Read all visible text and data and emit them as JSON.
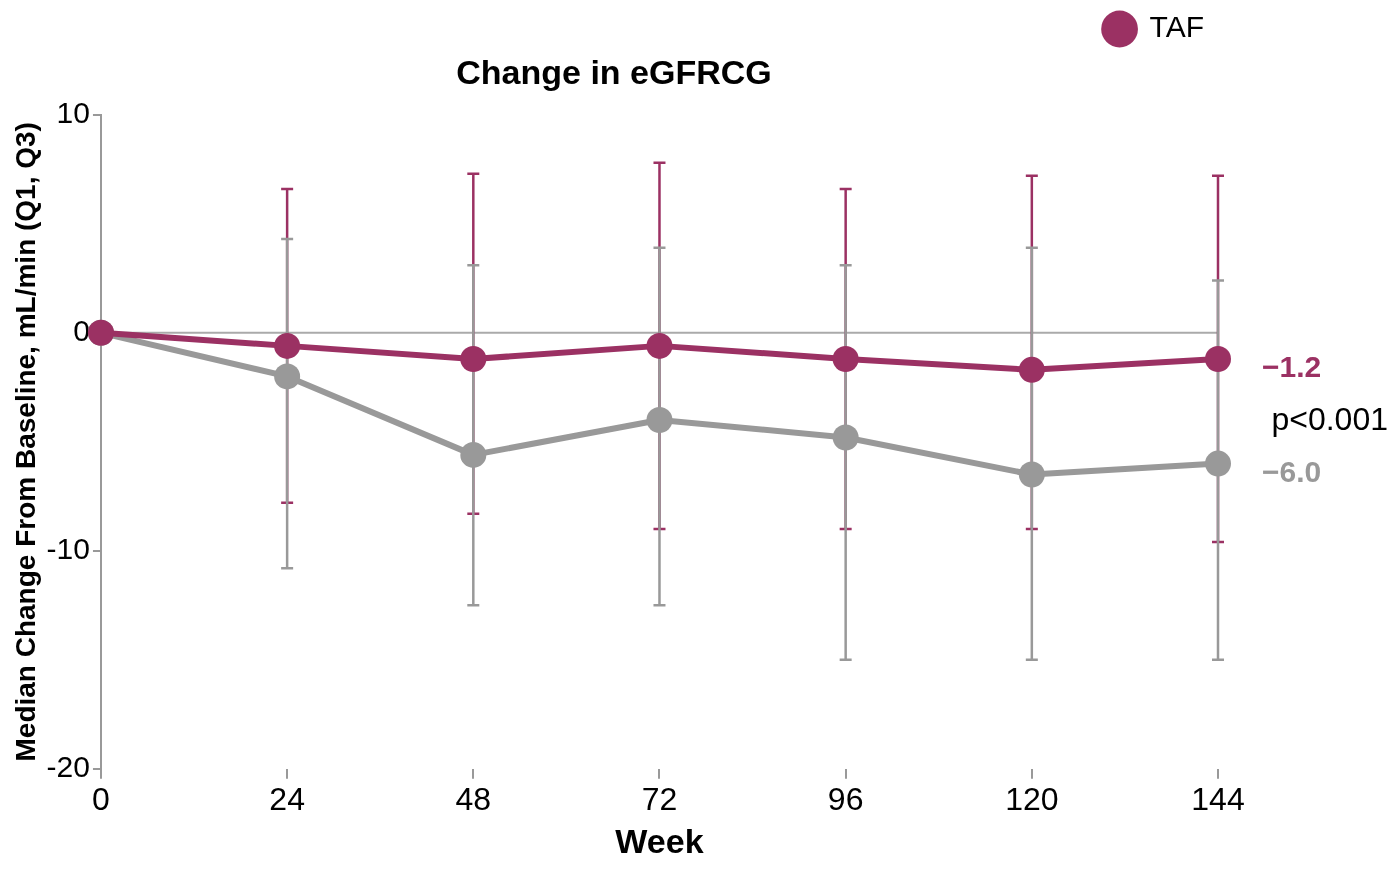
{
  "chart_data": {
    "type": "line",
    "title": "Change in eGFRCG",
    "xlabel": "Week",
    "ylabel": "Median Change From Baseline, mL/min (Q1, Q3)",
    "x": [
      0,
      24,
      48,
      72,
      96,
      120,
      144
    ],
    "series": [
      {
        "name": "TAF",
        "color": "#9b3163",
        "values": [
          0,
          -0.6,
          -1.2,
          -0.6,
          -1.2,
          -1.7,
          -1.2
        ],
        "errors": [
          null,
          [
            -7.8,
            6.6
          ],
          [
            -8.3,
            7.3
          ],
          [
            -9.0,
            7.8
          ],
          [
            -9.0,
            6.6
          ],
          [
            -9.0,
            7.2
          ],
          [
            -9.6,
            7.2
          ]
        ]
      },
      {
        "color": "#999999",
        "values": [
          0,
          -2.0,
          -5.6,
          -4.0,
          -4.8,
          -6.5,
          -6.0
        ],
        "errors": [
          null,
          [
            -10.8,
            4.3
          ],
          [
            -12.5,
            3.1
          ],
          [
            -12.5,
            3.9
          ],
          [
            -15.0,
            3.1
          ],
          [
            -15.0,
            3.9
          ],
          [
            -15.0,
            2.4
          ]
        ]
      }
    ],
    "xlim": [
      0,
      144
    ],
    "xticks": [
      0,
      24,
      48,
      72,
      96,
      120,
      144
    ],
    "ylim": [
      -20,
      10
    ],
    "yticks": [
      -20,
      -10,
      0,
      10
    ],
    "ref_lines": [
      {
        "axis": "y",
        "value": 0,
        "color": "#aaaaaa"
      }
    ],
    "annotations": [
      {
        "text": "−1.2",
        "x": 144,
        "y": -1.2
      },
      "p<0.001",
      {
        "text": "−6.0",
        "x": 144,
        "y": -6.0
      }
    ],
    "grid": false,
    "legend": "top right",
    "marker": "circle",
    "line_style": "solid"
  }
}
